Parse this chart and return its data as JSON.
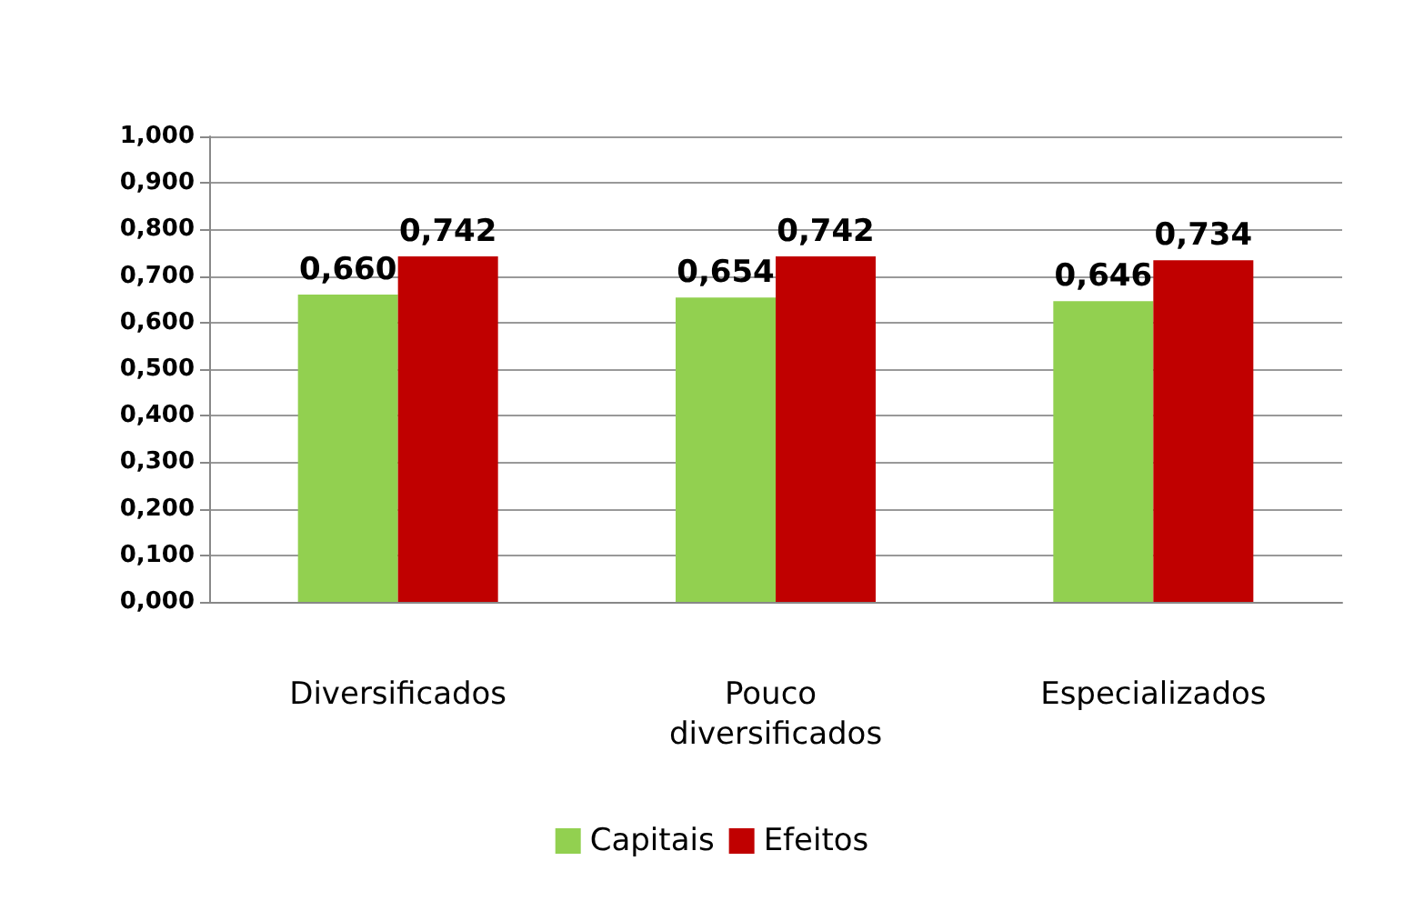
{
  "chart_data": {
    "type": "bar",
    "categories": [
      "Diversificados",
      "Pouco diversificados",
      "Especializados"
    ],
    "series": [
      {
        "name": "Capitais",
        "color": "#92d050",
        "values": [
          0.66,
          0.654,
          0.646
        ],
        "value_labels": [
          "0,660",
          "0,654",
          "0,646"
        ]
      },
      {
        "name": "Efeitos",
        "color": "#c00000",
        "values": [
          0.742,
          0.742,
          0.734
        ],
        "value_labels": [
          "0,742",
          "0,742",
          "0,734"
        ]
      }
    ],
    "ylim": [
      0,
      1
    ],
    "yticks": [
      {
        "value": 0,
        "label": "0,000"
      },
      {
        "value": 0.1,
        "label": "0,100"
      },
      {
        "value": 0.2,
        "label": "0,200"
      },
      {
        "value": 0.3,
        "label": "0,300"
      },
      {
        "value": 0.4,
        "label": "0,400"
      },
      {
        "value": 0.5,
        "label": "0,500"
      },
      {
        "value": 0.6,
        "label": "0,600"
      },
      {
        "value": 0.7,
        "label": "0,700"
      },
      {
        "value": 0.8,
        "label": "0,800"
      },
      {
        "value": 0.9,
        "label": "0,900"
      },
      {
        "value": 1,
        "label": "1,000"
      }
    ],
    "grid": "y",
    "legend": "bottom"
  }
}
